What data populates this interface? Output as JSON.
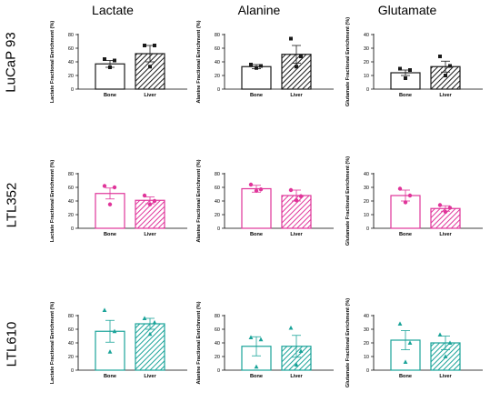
{
  "column_titles": [
    "Lactate",
    "Alanine",
    "Glutamate"
  ],
  "row_labels": [
    "LuCaP 93",
    "LTL352",
    "LTL610"
  ],
  "row_colors": [
    "#1a1a1a",
    "#e0359a",
    "#1aa399"
  ],
  "row_markers": [
    "square",
    "circle",
    "triangle"
  ],
  "chart_data": [
    {
      "type": "bar",
      "row": 0,
      "col": 0,
      "ylabel": "Lactate Fractional Enrichment (%)",
      "categories": [
        "Bone",
        "Liver"
      ],
      "ylim": [
        0,
        80
      ],
      "yticks": [
        0,
        20,
        40,
        60,
        80
      ],
      "values": [
        37,
        52
      ],
      "errors": [
        5,
        12
      ],
      "points": [
        [
          44,
          42,
          32
        ],
        [
          64,
          64,
          33
        ]
      ]
    },
    {
      "type": "bar",
      "row": 0,
      "col": 1,
      "ylabel": "Alanine Fractional Enrichment (%)",
      "categories": [
        "Bone",
        "Liver"
      ],
      "ylim": [
        0,
        80
      ],
      "yticks": [
        0,
        20,
        40,
        60,
        80
      ],
      "values": [
        33,
        51
      ],
      "errors": [
        3,
        13
      ],
      "points": [
        [
          36,
          34,
          31
        ],
        [
          74,
          48,
          33
        ]
      ]
    },
    {
      "type": "bar",
      "row": 0,
      "col": 2,
      "ylabel": "Glutamate Fractional Enrichment (%)",
      "categories": [
        "Bone",
        "Liver"
      ],
      "ylim": [
        0,
        40
      ],
      "yticks": [
        0,
        10,
        20,
        30,
        40
      ],
      "values": [
        12,
        16.5
      ],
      "errors": [
        2,
        4
      ],
      "points": [
        [
          15,
          14,
          8
        ],
        [
          24,
          17,
          10
        ]
      ]
    },
    {
      "type": "bar",
      "row": 1,
      "col": 0,
      "ylabel": "Lactate Fractional Enrichment (%)",
      "categories": [
        "Bone",
        "Liver"
      ],
      "ylim": [
        0,
        80
      ],
      "yticks": [
        0,
        20,
        40,
        60,
        80
      ],
      "values": [
        51,
        41
      ],
      "errors": [
        8,
        5
      ],
      "points": [
        [
          62,
          60,
          35
        ],
        [
          48,
          40,
          35
        ]
      ]
    },
    {
      "type": "bar",
      "row": 1,
      "col": 1,
      "ylabel": "Alanine Fractional Enrichment (%)",
      "categories": [
        "Bone",
        "Liver"
      ],
      "ylim": [
        0,
        80
      ],
      "yticks": [
        0,
        20,
        40,
        60,
        80
      ],
      "values": [
        58,
        48
      ],
      "errors": [
        5,
        8
      ],
      "points": [
        [
          64,
          57,
          55
        ],
        [
          56,
          47,
          41
        ]
      ]
    },
    {
      "type": "bar",
      "row": 1,
      "col": 2,
      "ylabel": "Glutamate Fractional Enrichment (%)",
      "categories": [
        "Bone",
        "Liver"
      ],
      "ylim": [
        0,
        40
      ],
      "yticks": [
        0,
        10,
        20,
        30,
        40
      ],
      "values": [
        24,
        14.5
      ],
      "errors": [
        4,
        2
      ],
      "points": [
        [
          29,
          24,
          19
        ],
        [
          17,
          15,
          12
        ]
      ]
    },
    {
      "type": "bar",
      "row": 2,
      "col": 0,
      "ylabel": "Lactate Fractional Enrichment (%)",
      "categories": [
        "Bone",
        "Liver"
      ],
      "ylim": [
        0,
        80
      ],
      "yticks": [
        0,
        20,
        40,
        60,
        80
      ],
      "values": [
        57,
        68
      ],
      "errors": [
        16,
        8
      ],
      "points": [
        [
          88,
          57,
          27
        ],
        [
          76,
          70,
          53
        ]
      ]
    },
    {
      "type": "bar",
      "row": 2,
      "col": 1,
      "ylabel": "Alanine Fractional Enrichment (%)",
      "categories": [
        "Bone",
        "Liver"
      ],
      "ylim": [
        0,
        80
      ],
      "yticks": [
        0,
        20,
        40,
        60,
        80
      ],
      "values": [
        35,
        35
      ],
      "errors": [
        14,
        16
      ],
      "points": [
        [
          48,
          45,
          5
        ],
        [
          62,
          28,
          8
        ]
      ]
    },
    {
      "type": "bar",
      "row": 2,
      "col": 2,
      "ylabel": "Glutamate Fractional Enrichment (%)",
      "categories": [
        "Bone",
        "Liver"
      ],
      "ylim": [
        0,
        40
      ],
      "yticks": [
        0,
        10,
        20,
        30,
        40
      ],
      "values": [
        22,
        20
      ],
      "errors": [
        7,
        5
      ],
      "points": [
        [
          34,
          20,
          6
        ],
        [
          26,
          20,
          10
        ]
      ]
    }
  ]
}
